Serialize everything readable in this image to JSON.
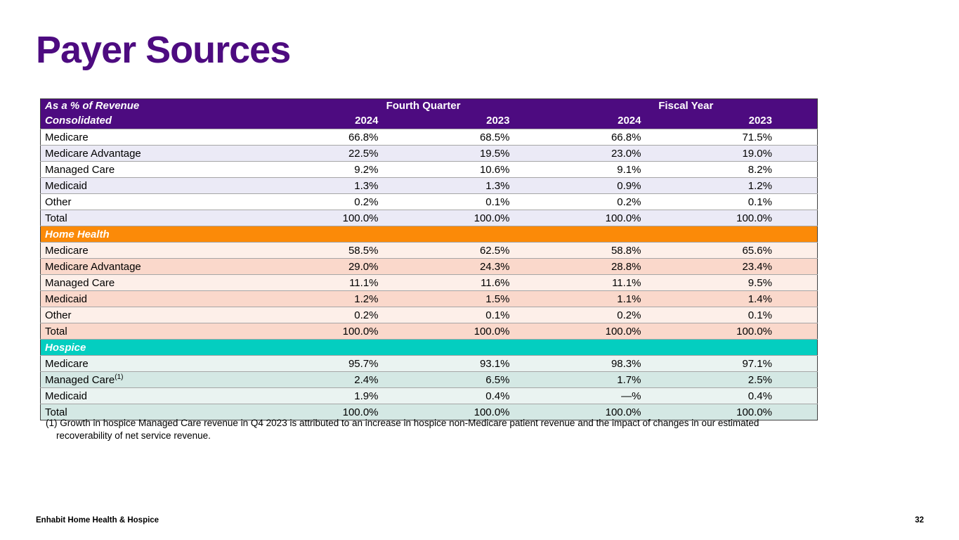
{
  "slide": {
    "title": "Payer Sources",
    "footer_left": "Enhabit Home Health & Hospice",
    "page_number": "32",
    "footnote": "(1) Growth in hospice Managed Care revenue in Q4 2023 is attributed to an increase in hospice non-Medicare patient revenue and the impact of changes in our estimated recoverability of net service revenue."
  },
  "colors": {
    "brand_purple": "#4D0B80",
    "home_health_orange": "#FB8A08",
    "hospice_teal": "#04CEC0",
    "consolidated_stripe": "#EBEAF6",
    "home_health_stripe_light": "#FDEFE9",
    "home_health_stripe_dark": "#FAD8CB",
    "hospice_stripe_light": "#EAF3F1",
    "hospice_stripe_dark": "#D4E8E4"
  },
  "table": {
    "corner_row1": "As a % of Revenue",
    "corner_row2": "Consolidated",
    "col_groups": [
      "Fourth Quarter",
      "Fiscal Year"
    ],
    "years": [
      "2024",
      "2023",
      "2024",
      "2023"
    ],
    "sections": [
      {
        "header": null,
        "theme": {
          "header_bg": "#4D0B80",
          "row_light": "#FFFFFF",
          "row_dark": "#EBEAF6"
        },
        "rows": [
          {
            "label": "Medicare",
            "values": [
              "66.8%",
              "68.5%",
              "66.8%",
              "71.5%"
            ]
          },
          {
            "label": "Medicare Advantage",
            "values": [
              "22.5%",
              "19.5%",
              "23.0%",
              "19.0%"
            ]
          },
          {
            "label": "Managed Care",
            "values": [
              "9.2%",
              "10.6%",
              "9.1%",
              "8.2%"
            ]
          },
          {
            "label": "Medicaid",
            "values": [
              "1.3%",
              "1.3%",
              "0.9%",
              "1.2%"
            ]
          },
          {
            "label": "Other",
            "values": [
              "0.2%",
              "0.1%",
              "0.2%",
              "0.1%"
            ]
          },
          {
            "label": "Total",
            "values": [
              "100.0%",
              "100.0%",
              "100.0%",
              "100.0%"
            ]
          }
        ]
      },
      {
        "header": "Home Health",
        "theme": {
          "header_bg": "#FB8A08",
          "row_light": "#FDEFE9",
          "row_dark": "#FAD8CB"
        },
        "rows": [
          {
            "label": "Medicare",
            "values": [
              "58.5%",
              "62.5%",
              "58.8%",
              "65.6%"
            ]
          },
          {
            "label": "Medicare Advantage",
            "values": [
              "29.0%",
              "24.3%",
              "28.8%",
              "23.4%"
            ]
          },
          {
            "label": "Managed Care",
            "values": [
              "11.1%",
              "11.6%",
              "11.1%",
              "9.5%"
            ]
          },
          {
            "label": "Medicaid",
            "values": [
              "1.2%",
              "1.5%",
              "1.1%",
              "1.4%"
            ]
          },
          {
            "label": "Other",
            "values": [
              "0.2%",
              "0.1%",
              "0.2%",
              "0.1%"
            ]
          },
          {
            "label": "Total",
            "values": [
              "100.0%",
              "100.0%",
              "100.0%",
              "100.0%"
            ]
          }
        ]
      },
      {
        "header": "Hospice",
        "theme": {
          "header_bg": "#04CEC0",
          "row_light": "#EAF3F1",
          "row_dark": "#D4E8E4"
        },
        "rows": [
          {
            "label": "Medicare",
            "values": [
              "95.7%",
              "93.1%",
              "98.3%",
              "97.1%"
            ]
          },
          {
            "label": "Managed Care",
            "sup": "(1)",
            "values": [
              "2.4%",
              "6.5%",
              "1.7%",
              "2.5%"
            ]
          },
          {
            "label": "Medicaid",
            "values": [
              "1.9%",
              "0.4%",
              "—%",
              "0.4%"
            ]
          },
          {
            "label": "Total",
            "values": [
              "100.0%",
              "100.0%",
              "100.0%",
              "100.0%"
            ]
          }
        ]
      }
    ]
  }
}
